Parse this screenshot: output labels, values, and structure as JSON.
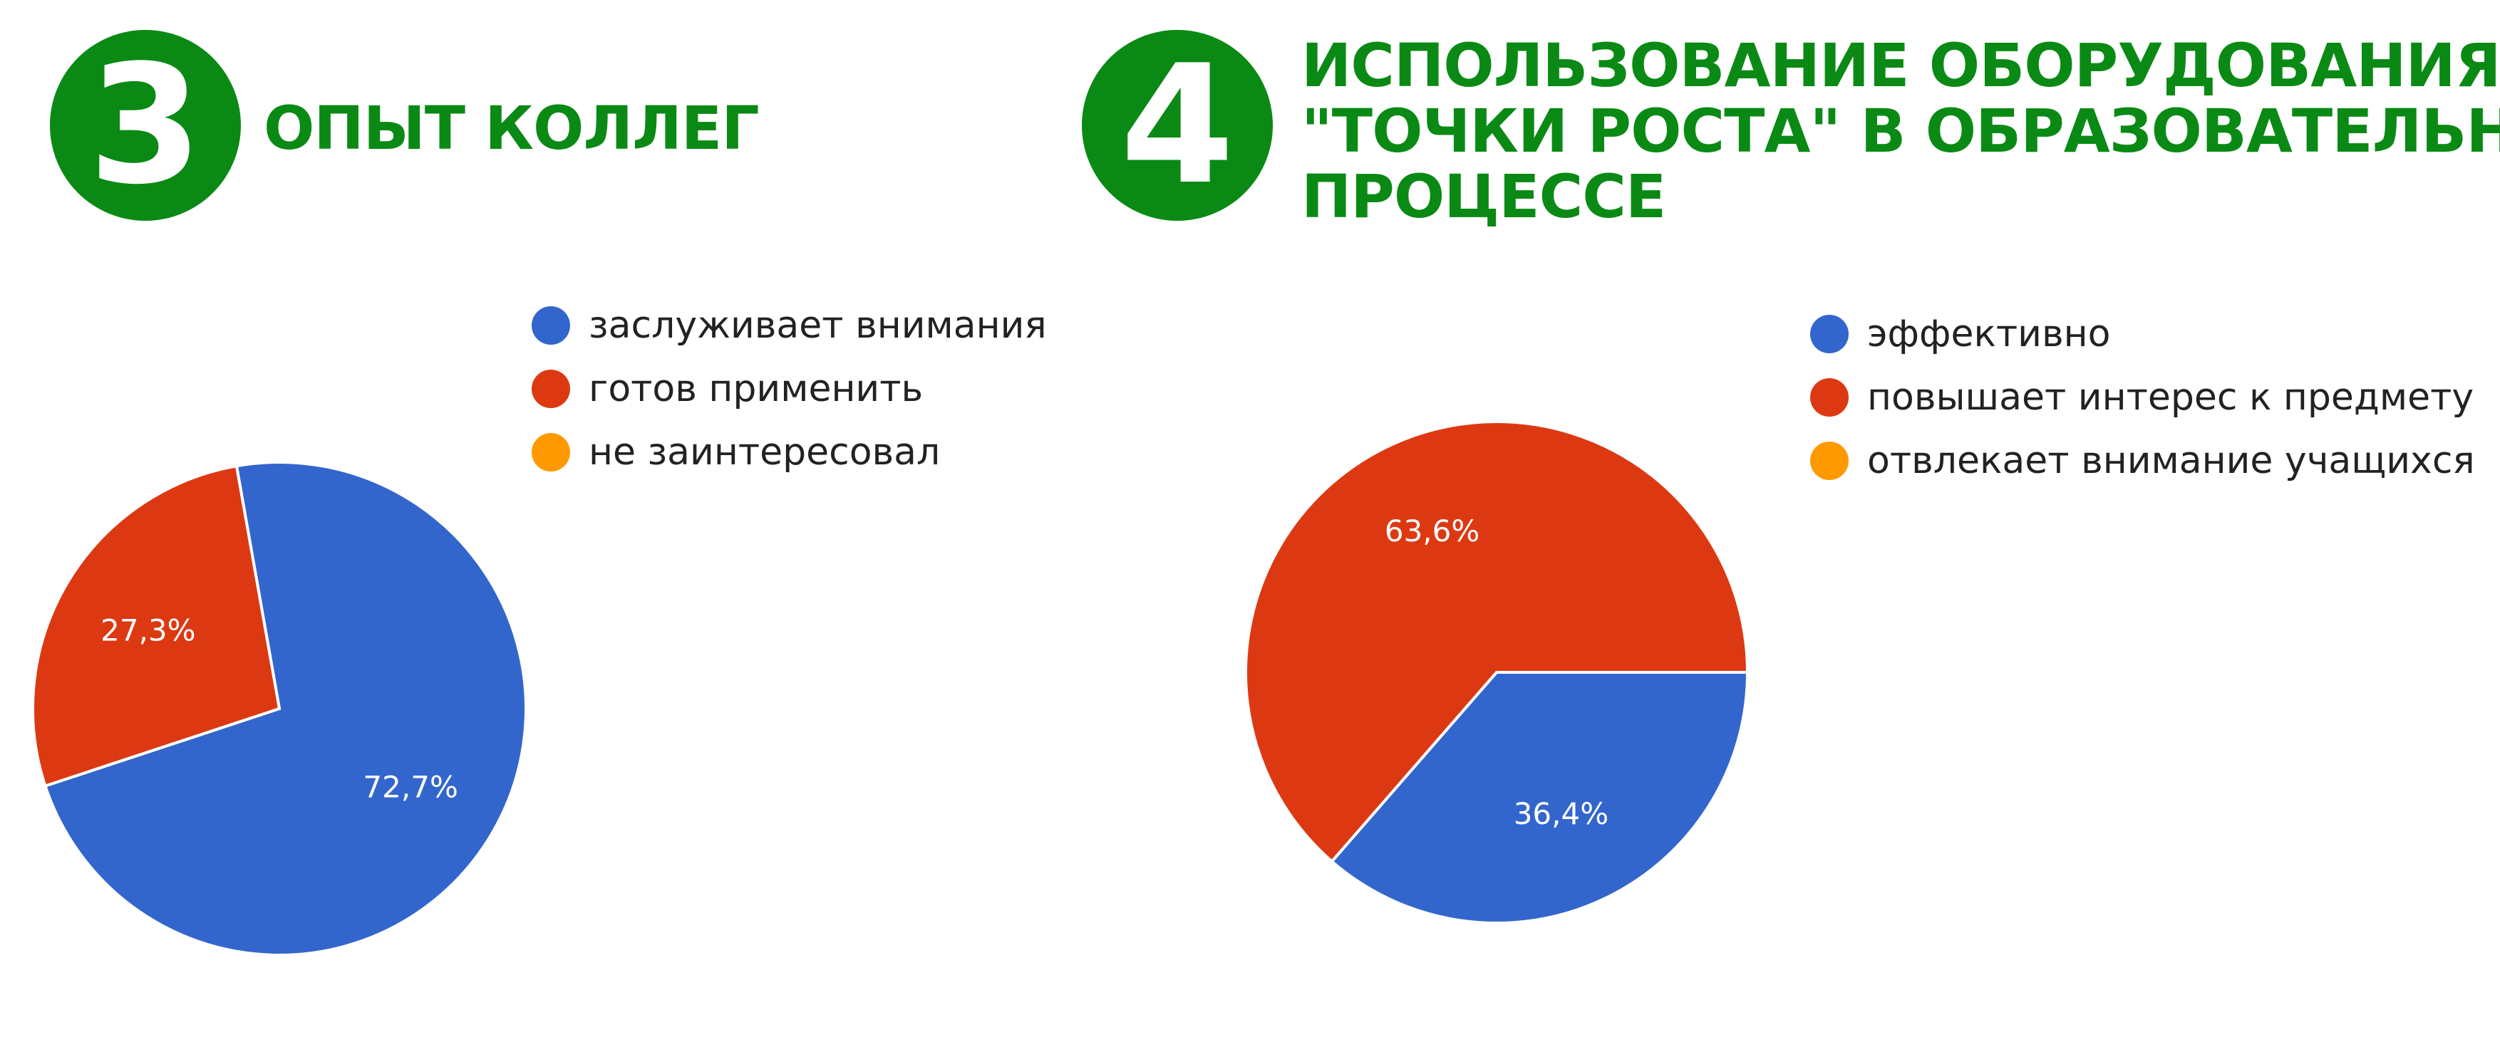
{
  "accent_color": "#0a8a14",
  "sections": [
    {
      "number": "3",
      "heading_lines": [
        "ОПЫТ КОЛЛЕГ"
      ]
    },
    {
      "number": "4",
      "heading_lines": [
        "ИСПОЛЬЗОВАНИЕ ОБОРУДОВАНИЯ",
        "\"ТОЧКИ РОСТА\" В ОБРАЗОВАТЕЛЬНОМ",
        "ПРОЦЕССЕ"
      ]
    }
  ],
  "chart_data": [
    {
      "type": "pie",
      "categories": [
        "заслуживает внимания",
        "готов применить",
        "не заинтересовал"
      ],
      "values": [
        72.7,
        27.3,
        0
      ],
      "data_labels": [
        "72,7%",
        "27,3%",
        ""
      ],
      "colors": [
        "#3366cc",
        "#dc3912",
        "#ff9900"
      ],
      "legend_position": "top-right"
    },
    {
      "type": "pie",
      "categories": [
        "эффективно",
        "повышает интерес к предмету",
        "отвлекает внимание учащихся"
      ],
      "values": [
        36.4,
        63.6,
        0
      ],
      "data_labels": [
        "36,4%",
        "63,6%",
        ""
      ],
      "colors": [
        "#3366cc",
        "#dc3912",
        "#ff9900"
      ],
      "legend_position": "top-right"
    }
  ]
}
